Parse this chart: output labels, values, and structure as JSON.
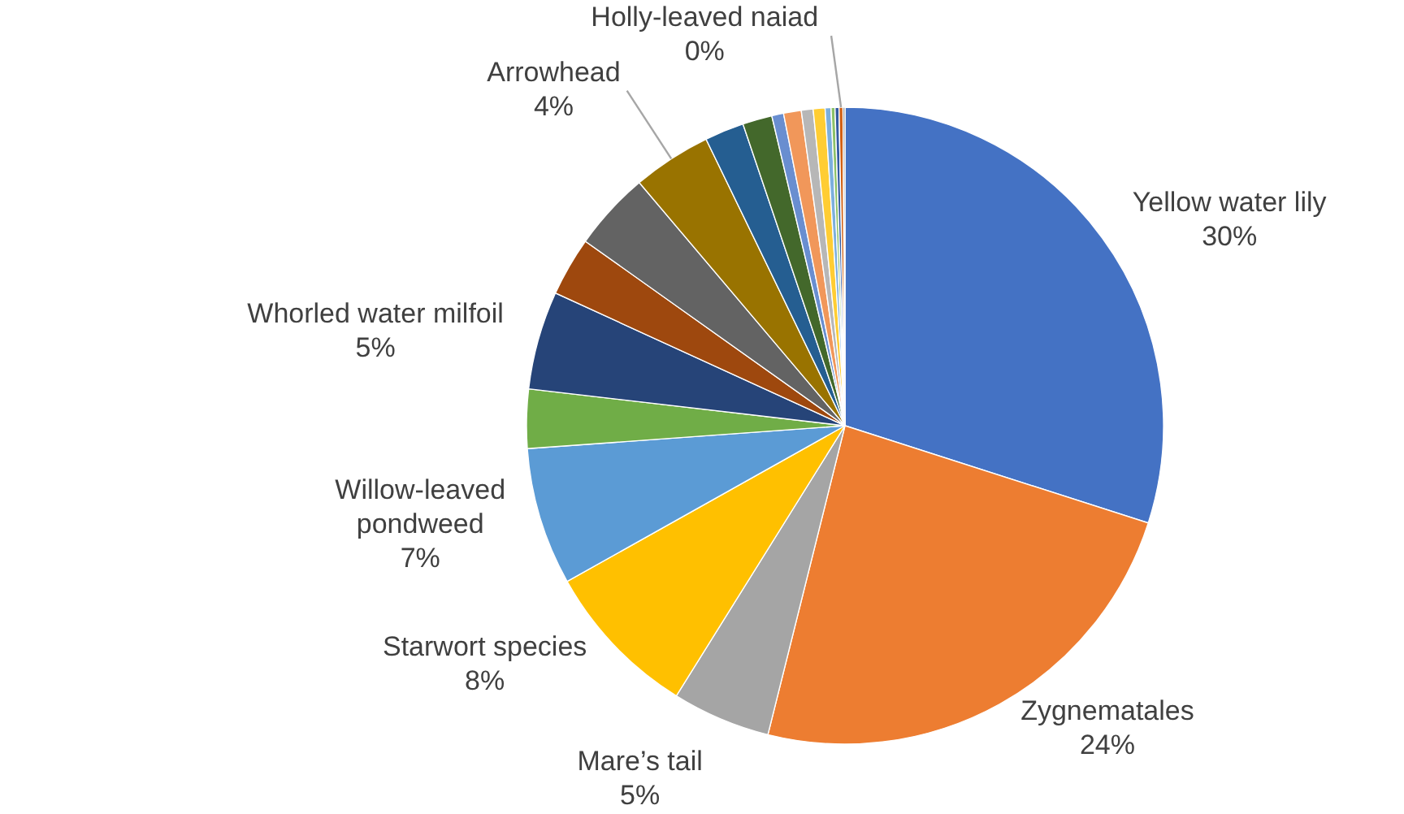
{
  "chart_data": {
    "type": "pie",
    "categories": [
      "Yellow water lily",
      "Zygnematales",
      "Mare’s tail",
      "Starwort species",
      "Willow-leaved pondweed",
      null,
      "Whorled water milfoil",
      null,
      null,
      "Arrowhead",
      null,
      null,
      null,
      null,
      null,
      null,
      null,
      null,
      null,
      "Holly-leaved naiad",
      null
    ],
    "values": [
      30,
      24,
      5,
      8,
      7,
      3,
      5,
      3,
      4,
      4,
      2,
      1.5,
      0.6,
      0.9,
      0.6,
      0.6,
      0.3,
      0.2,
      0.2,
      0.2,
      0.1
    ],
    "colors": [
      "#4472c4",
      "#ed7d31",
      "#a5a5a5",
      "#ffc000",
      "#5b9bd5",
      "#70ad47",
      "#264478",
      "#9e480e",
      "#636363",
      "#997300",
      "#255e91",
      "#43682b",
      "#698ed0",
      "#f1975a",
      "#b7b7b7",
      "#ffcd33",
      "#7cafdd",
      "#8cc168",
      "#335aa1",
      "#d26012",
      "#848484"
    ],
    "value_labels": [
      "30%",
      "24%",
      "5%",
      "8%",
      "7%",
      null,
      "5%",
      null,
      null,
      "4%",
      null,
      null,
      null,
      null,
      null,
      null,
      null,
      null,
      null,
      "0%",
      null
    ]
  }
}
